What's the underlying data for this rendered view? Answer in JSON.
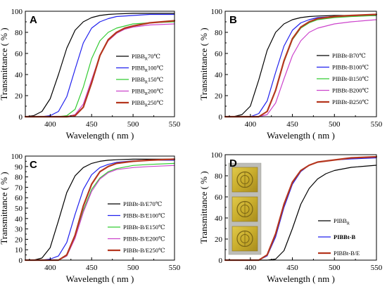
{
  "chart_data": [
    {
      "type": "line",
      "panel": "A",
      "xlabel": "Wavelength ( nm )",
      "ylabel": "Transmittance ( % )",
      "xlim": [
        370,
        550
      ],
      "ylim": [
        0,
        100
      ],
      "xticks": [
        "400",
        "450",
        "500",
        "550"
      ],
      "yticks": [
        "0",
        "20",
        "40",
        "60",
        "80",
        "100"
      ],
      "legend_position": "right",
      "series": [
        {
          "name": "PIBB70℃",
          "name_main": "PIBB",
          "name_sub": "R",
          "name_tail": "70℃",
          "color": "#000000",
          "x": [
            370,
            380,
            390,
            400,
            410,
            420,
            430,
            440,
            450,
            460,
            470,
            480,
            500,
            520,
            550
          ],
          "values": [
            0,
            1,
            5,
            17,
            40,
            65,
            82,
            90,
            94,
            96,
            97,
            97.5,
            98,
            98,
            98
          ]
        },
        {
          "name": "PIBB100℃",
          "name_main": "PIBB",
          "name_sub": "R",
          "name_tail": "100℃",
          "color": "#2020ee",
          "x": [
            370,
            390,
            400,
            410,
            420,
            430,
            440,
            450,
            460,
            470,
            480,
            500,
            520,
            550
          ],
          "values": [
            0,
            0,
            1,
            5,
            19,
            45,
            70,
            84,
            90,
            93,
            95,
            96,
            97,
            97
          ]
        },
        {
          "name": "PIBB150℃",
          "name_main": "PIBB",
          "name_sub": "R",
          "name_tail": "150℃",
          "color": "#33cc33",
          "x": [
            370,
            410,
            420,
            430,
            440,
            450,
            460,
            470,
            480,
            490,
            500,
            520,
            550
          ],
          "values": [
            0,
            0,
            1,
            7,
            28,
            55,
            72,
            80,
            84,
            86,
            88,
            89,
            90
          ]
        },
        {
          "name": "PIBB200℃",
          "name_main": "PIBB",
          "name_sub": "R",
          "name_tail": "200℃",
          "color": "#cc44cc",
          "x": [
            370,
            420,
            430,
            440,
            450,
            460,
            470,
            480,
            490,
            500,
            520,
            550
          ],
          "values": [
            0,
            0,
            2,
            12,
            35,
            58,
            72,
            79,
            83,
            85,
            87,
            88
          ]
        },
        {
          "name": "PIBB250℃",
          "name_main": "PIBB",
          "name_sub": "R",
          "name_tail": "250℃",
          "color": "#b5361e",
          "x": [
            370,
            420,
            430,
            440,
            450,
            460,
            470,
            480,
            490,
            500,
            520,
            550
          ],
          "values": [
            0,
            0,
            1,
            9,
            32,
            58,
            73,
            80,
            84,
            86,
            89,
            91
          ]
        }
      ]
    },
    {
      "type": "line",
      "panel": "B",
      "xlabel": "Wavelength ( nm )",
      "ylabel": "Transmittance ( % )",
      "xlim": [
        370,
        550
      ],
      "ylim": [
        0,
        100
      ],
      "xticks": [
        "400",
        "450",
        "500",
        "550"
      ],
      "yticks": [
        "0",
        "20",
        "40",
        "60",
        "80",
        "100"
      ],
      "legend_position": "right",
      "series": [
        {
          "name": "PIBBt-B70℃",
          "color": "#000000",
          "x": [
            370,
            380,
            390,
            400,
            410,
            420,
            430,
            440,
            450,
            460,
            470,
            480,
            500,
            520,
            550
          ],
          "values": [
            0,
            0,
            2,
            10,
            35,
            63,
            80,
            88,
            92,
            94,
            95,
            95.5,
            96,
            96,
            96
          ]
        },
        {
          "name": "PIBBt-B100℃",
          "color": "#2020ee",
          "x": [
            370,
            390,
            400,
            410,
            420,
            430,
            440,
            450,
            460,
            470,
            480,
            500,
            520,
            550
          ],
          "values": [
            0,
            0,
            0,
            3,
            15,
            42,
            67,
            82,
            89,
            92,
            94,
            95,
            95.5,
            96
          ]
        },
        {
          "name": "PIBBt-B150℃",
          "color": "#33cc33",
          "x": [
            370,
            400,
            410,
            420,
            430,
            440,
            450,
            460,
            470,
            480,
            500,
            520,
            550
          ],
          "values": [
            0,
            0,
            0,
            5,
            25,
            52,
            73,
            84,
            89,
            92,
            94,
            95,
            96
          ]
        },
        {
          "name": "PIBBt-B200℃",
          "color": "#cc44cc",
          "x": [
            370,
            410,
            420,
            430,
            440,
            450,
            460,
            470,
            480,
            500,
            520,
            550
          ],
          "values": [
            0,
            0,
            2,
            13,
            36,
            58,
            72,
            80,
            84,
            88,
            90,
            92
          ]
        },
        {
          "name": "PIBBt-B250℃",
          "color": "#b5361e",
          "x": [
            370,
            400,
            410,
            420,
            430,
            440,
            450,
            460,
            470,
            480,
            500,
            520,
            550
          ],
          "values": [
            0,
            0,
            0,
            5,
            25,
            53,
            74,
            85,
            90,
            93,
            95,
            96,
            97
          ]
        }
      ]
    },
    {
      "type": "line",
      "panel": "C",
      "xlabel": "Wavelength ( nm )",
      "ylabel": "Transmittance ( % )",
      "xlim": [
        370,
        550
      ],
      "ylim": [
        0,
        100
      ],
      "xticks": [
        "400",
        "450",
        "500",
        "550"
      ],
      "yticks": [
        "0",
        "10",
        "20",
        "30",
        "40",
        "50",
        "60",
        "70",
        "80",
        "90",
        "100"
      ],
      "legend_position": "right",
      "series": [
        {
          "name": "PIBBt-B/E70℃",
          "color": "#000000",
          "x": [
            370,
            380,
            390,
            400,
            410,
            420,
            430,
            440,
            450,
            460,
            470,
            480,
            500,
            520,
            550
          ],
          "values": [
            0,
            0,
            2,
            12,
            38,
            65,
            81,
            89,
            93,
            95,
            96,
            96.5,
            97,
            97,
            97
          ]
        },
        {
          "name": "PIBBt-B/E100℃",
          "color": "#2020ee",
          "x": [
            370,
            390,
            400,
            410,
            420,
            430,
            440,
            450,
            460,
            470,
            480,
            500,
            520,
            550
          ],
          "values": [
            0,
            0,
            1,
            4,
            17,
            44,
            68,
            82,
            89,
            92,
            94,
            95.5,
            96,
            96
          ]
        },
        {
          "name": "PIBBt-B/E150℃",
          "color": "#33cc33",
          "x": [
            370,
            400,
            410,
            420,
            430,
            440,
            450,
            460,
            470,
            480,
            500,
            520,
            550
          ],
          "values": [
            0,
            0,
            0,
            4,
            22,
            48,
            68,
            79,
            85,
            88,
            91,
            92,
            93
          ]
        },
        {
          "name": "PIBBt-B/E200℃",
          "color": "#cc44cc",
          "x": [
            370,
            400,
            410,
            420,
            430,
            440,
            450,
            460,
            470,
            480,
            500,
            520,
            550
          ],
          "values": [
            0,
            0,
            0,
            4,
            21,
            46,
            66,
            78,
            84,
            87,
            89,
            90,
            91
          ]
        },
        {
          "name": "PIBBt-B/E250℃",
          "color": "#b5361e",
          "x": [
            370,
            400,
            410,
            420,
            430,
            440,
            450,
            460,
            470,
            480,
            500,
            520,
            550
          ],
          "values": [
            0,
            0,
            0,
            5,
            24,
            52,
            73,
            85,
            90,
            93,
            95,
            96,
            97
          ]
        }
      ]
    },
    {
      "type": "line",
      "panel": "D",
      "xlabel": "Wavelength ( nm )",
      "ylabel": "Transmittance ( % )",
      "xlim": [
        370,
        550
      ],
      "ylim": [
        0,
        100
      ],
      "xticks": [
        "400",
        "450",
        "500",
        "550"
      ],
      "yticks": [
        "0",
        "20",
        "40",
        "60",
        "80",
        "100"
      ],
      "legend_position": "right",
      "inset": "photographs of three film samples",
      "series": [
        {
          "name": "PIBBR",
          "name_main": "PIBB",
          "name_sub": "R",
          "name_tail": "",
          "color": "#000000",
          "x": [
            370,
            420,
            430,
            440,
            450,
            460,
            470,
            480,
            490,
            500,
            520,
            550
          ],
          "values": [
            0,
            0,
            1,
            9,
            30,
            53,
            68,
            77,
            82,
            85,
            88,
            90
          ]
        },
        {
          "name": "PIBBt-B",
          "color": "#2020ee",
          "bold": true,
          "x": [
            370,
            410,
            420,
            430,
            440,
            450,
            460,
            470,
            480,
            500,
            520,
            550
          ],
          "values": [
            0,
            0,
            4,
            22,
            50,
            72,
            84,
            90,
            93,
            95,
            96,
            97
          ]
        },
        {
          "name": "PIBBt-B/E",
          "color": "#b5361e",
          "x": [
            370,
            410,
            420,
            430,
            440,
            450,
            460,
            470,
            480,
            500,
            520,
            550
          ],
          "values": [
            0,
            0,
            5,
            25,
            53,
            74,
            85,
            90,
            93,
            95,
            97,
            98
          ]
        }
      ]
    }
  ]
}
